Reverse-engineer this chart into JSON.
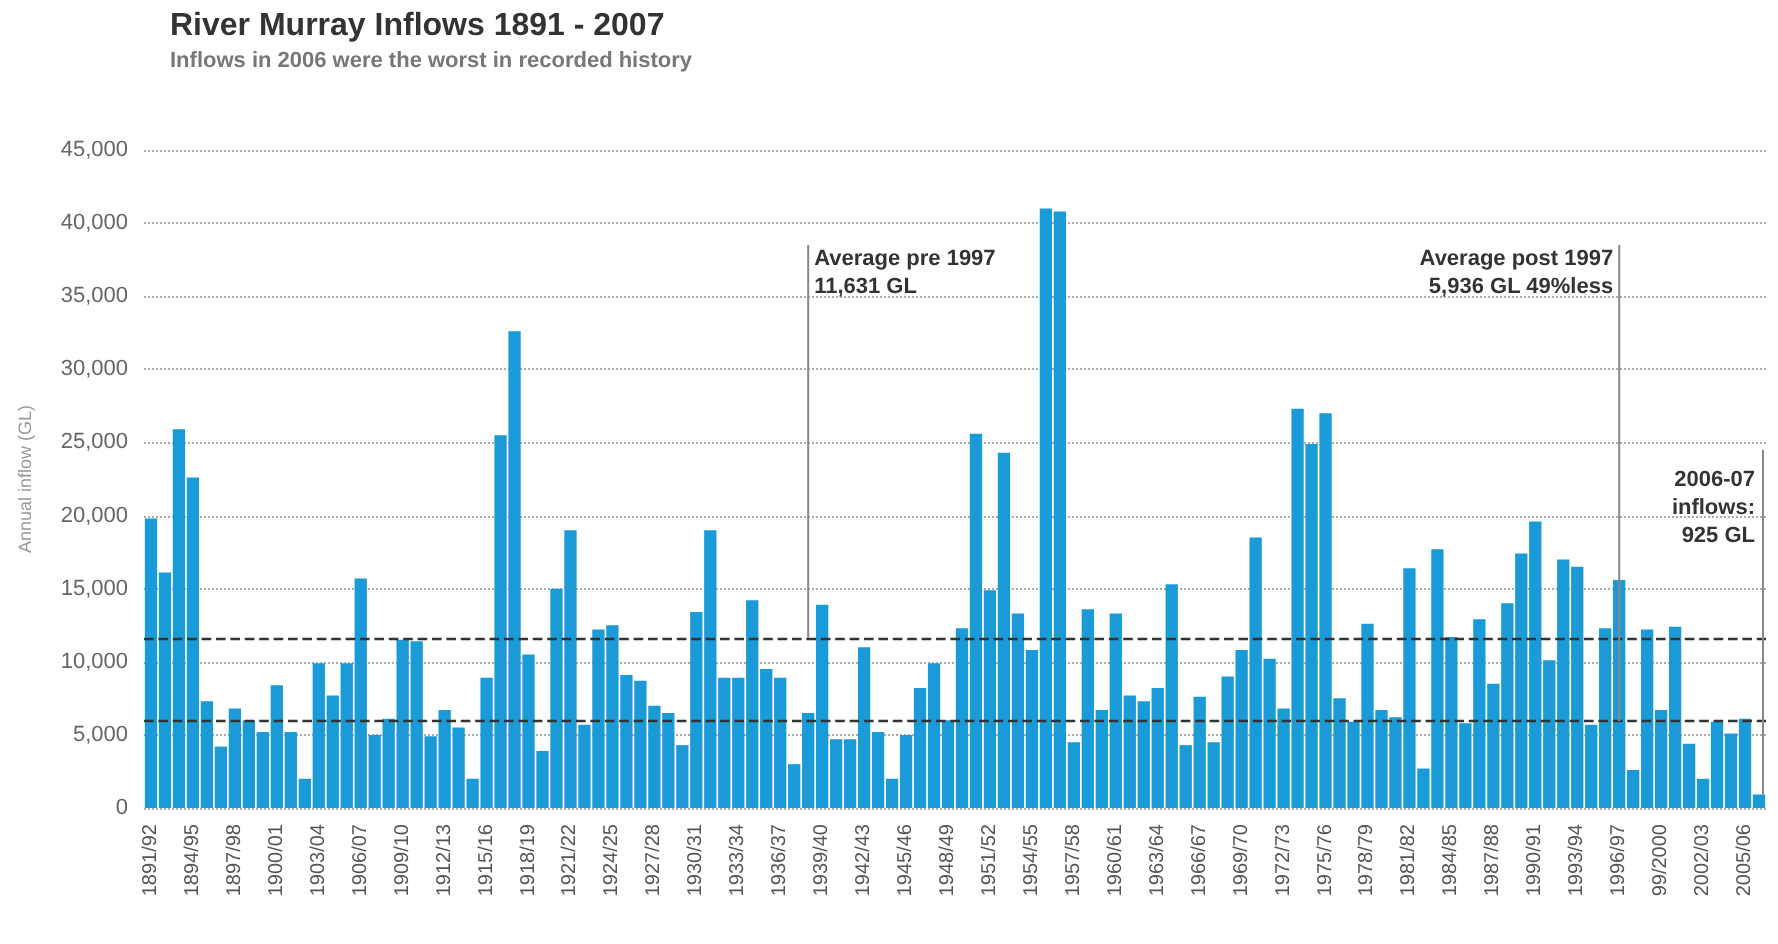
{
  "chart_data": {
    "type": "bar",
    "title": "River Murray Inflows 1891 - 2007",
    "subtitle": "Inflows in 2006 were the worst in recorded history",
    "ylabel": "Annual inflow (GL)",
    "categories": [
      "1891/92",
      null,
      null,
      "1894/95",
      null,
      null,
      "1897/98",
      null,
      null,
      "1900/01",
      null,
      null,
      "1903/04",
      null,
      null,
      "1906/07",
      null,
      null,
      "1909/10",
      null,
      null,
      "1912/13",
      null,
      null,
      "1915/16",
      null,
      null,
      "1918/19",
      null,
      null,
      "1921/22",
      null,
      null,
      "1924/25",
      null,
      null,
      "1927/28",
      null,
      null,
      "1930/31",
      null,
      null,
      "1933/34",
      null,
      null,
      "1936/37",
      null,
      null,
      "1939/40",
      null,
      null,
      "1942/43",
      null,
      null,
      "1945/46",
      null,
      null,
      "1948/49",
      null,
      null,
      "1951/52",
      null,
      null,
      "1954/55",
      null,
      null,
      "1957/58",
      null,
      null,
      "1960/61",
      null,
      null,
      "1963/64",
      null,
      null,
      "1966/67",
      null,
      null,
      "1969/70",
      null,
      null,
      "1972/73",
      null,
      null,
      "1975/76",
      null,
      null,
      "1978/79",
      null,
      null,
      "1981/82",
      null,
      null,
      "1984/85",
      null,
      null,
      "1987/88",
      null,
      null,
      "1990/91",
      null,
      null,
      "1993/94",
      null,
      null,
      "1996/97",
      null,
      null,
      "99/2000",
      null,
      null,
      "2002/03",
      null,
      null,
      "2005/06",
      null
    ],
    "values": [
      19800,
      16100,
      25900,
      22600,
      7300,
      4200,
      6800,
      6000,
      5200,
      8400,
      5200,
      2000,
      9900,
      7700,
      9900,
      15700,
      5000,
      6100,
      11500,
      11400,
      4900,
      6700,
      5500,
      2000,
      8900,
      25500,
      32600,
      10500,
      3900,
      15000,
      19000,
      5700,
      12200,
      12500,
      9100,
      8700,
      7000,
      6500,
      4300,
      13400,
      19000,
      8900,
      8900,
      14200,
      9500,
      8900,
      3000,
      6500,
      13900,
      4700,
      4700,
      11000,
      5200,
      2000,
      5000,
      8200,
      9900,
      6000,
      12300,
      25600,
      14900,
      24300,
      13300,
      10800,
      41000,
      40800,
      4500,
      13600,
      6700,
      13300,
      7700,
      7300,
      8200,
      15300,
      4300,
      7600,
      4500,
      9000,
      10800,
      18500,
      10200,
      6800,
      27300,
      24900,
      27000,
      7500,
      5900,
      12600,
      6700,
      6200,
      16400,
      2700,
      17700,
      11700,
      5800,
      12900,
      8500,
      14000,
      17400,
      19600,
      10100,
      17000,
      16500,
      5700,
      12300,
      15600,
      2600,
      12200,
      6700,
      12400,
      4400,
      2000,
      5900,
      5100,
      6100,
      925
    ],
    "color": "#1a9bd7",
    "ylim": [
      0,
      45000
    ],
    "yticks": [
      {
        "value": 0,
        "label": "0"
      },
      {
        "value": 5000,
        "label": "5,000"
      },
      {
        "value": 10000,
        "label": "10,000"
      },
      {
        "value": 15000,
        "label": "15,000"
      },
      {
        "value": 20000,
        "label": "20,000"
      },
      {
        "value": 25000,
        "label": "25,000"
      },
      {
        "value": 30000,
        "label": "30,000"
      },
      {
        "value": 35000,
        "label": "35,000"
      },
      {
        "value": 40000,
        "label": "40,000"
      },
      {
        "value": 45000,
        "label": "45,000"
      }
    ],
    "grid": "y",
    "ref_lines": [
      {
        "axis": "y",
        "value": 11631,
        "label": "Average pre 1997\n11,631 GL",
        "color": "#333333",
        "line_style": "dashed"
      },
      {
        "axis": "y",
        "value": 5936,
        "label": "Average post 1997\n5,936 GL 49%less",
        "color": "#333333",
        "line_style": "dashed"
      }
    ],
    "annotations": [
      "2006-07\ninflows:\n925 GL"
    ]
  }
}
